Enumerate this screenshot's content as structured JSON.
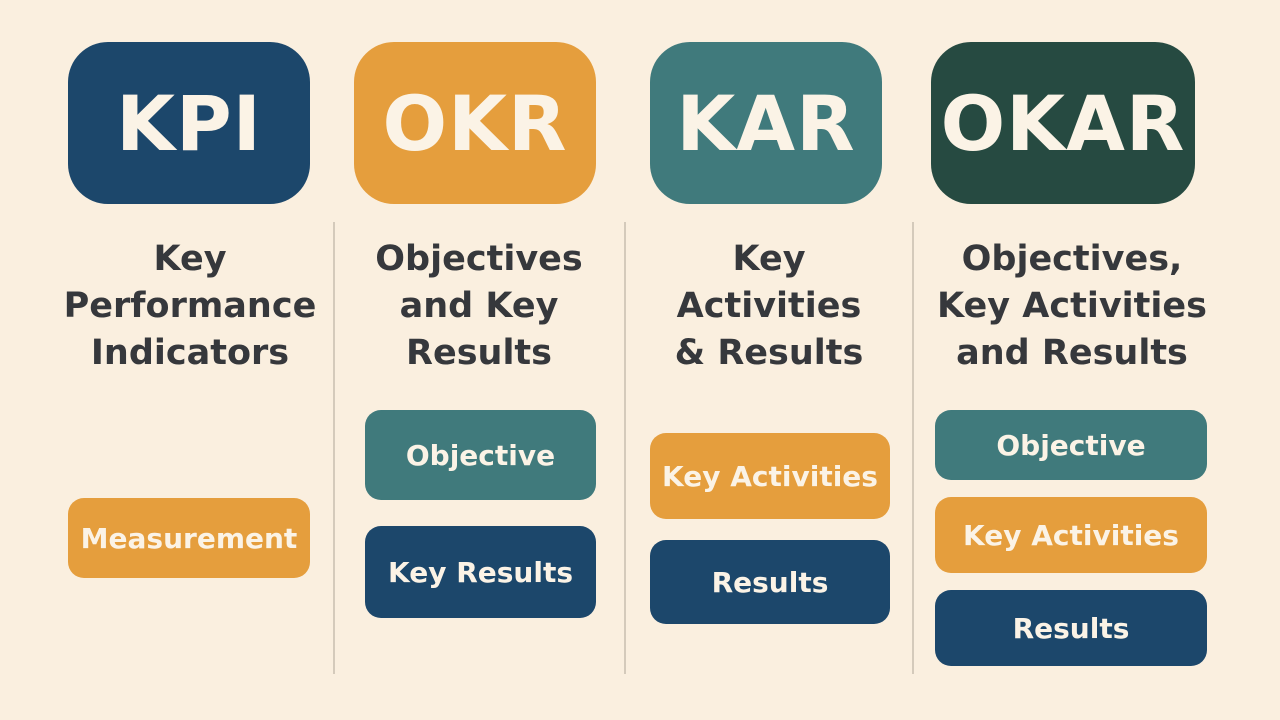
{
  "columns": [
    {
      "acronym": "KPI",
      "title": "Key\nPerformance\nIndicators",
      "items": [
        "Measurement"
      ]
    },
    {
      "acronym": "OKR",
      "title": "Objectives\nand Key\nResults",
      "items": [
        "Objective",
        "Key Results"
      ]
    },
    {
      "acronym": "KAR",
      "title": "Key\nActivities\n& Results",
      "items": [
        "Key Activities",
        "Results"
      ]
    },
    {
      "acronym": "OKAR",
      "title": "Objectives,\nKey Activities\nand Results",
      "items": [
        "Objective",
        "Key Activities",
        "Results"
      ]
    }
  ],
  "colors": {
    "background": "#faefdf",
    "navy": "#1c476b",
    "orange": "#e59e3d",
    "teal": "#407a7c",
    "dark_green": "#264a41"
  }
}
